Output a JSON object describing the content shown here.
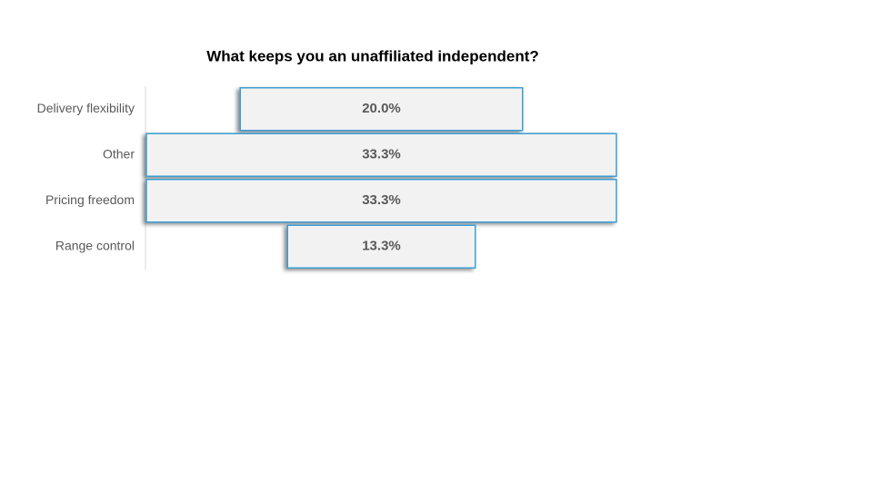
{
  "chart_data": {
    "type": "funnel",
    "title": "What keeps you an unaffiliated independent?",
    "categories": [
      "Delivery flexibility",
      "Other",
      "Pricing freedom",
      "Range control"
    ],
    "values": [
      20.0,
      33.3,
      33.3,
      13.3
    ],
    "value_labels": [
      "20.0%",
      "33.3%",
      "33.3%",
      "13.3%"
    ],
    "color": "#f2f2f2",
    "border_color": "#3a9fd6"
  }
}
